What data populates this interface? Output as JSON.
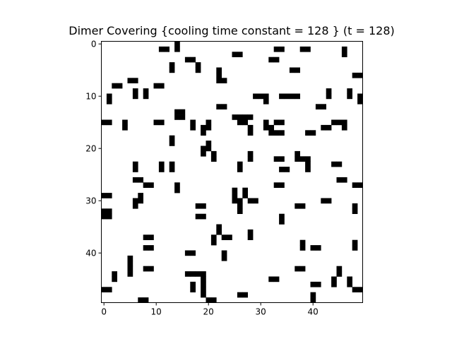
{
  "chart_data": {
    "type": "heatmap",
    "title": "Dimer Covering {cooling time constant = 128 } (t = 128)",
    "xlabel": "",
    "ylabel": "",
    "grid_size": [
      50,
      50
    ],
    "xlim": [
      -0.5,
      49.5
    ],
    "ylim": [
      49.5,
      -0.5
    ],
    "x_ticks": [
      0,
      10,
      20,
      30,
      40
    ],
    "y_ticks": [
      0,
      10,
      20,
      30,
      40
    ],
    "colormap": {
      "0": "#ffffff",
      "1": "#000000"
    },
    "filled_cells": [
      [
        1,
        11
      ],
      [
        1,
        12
      ],
      [
        0,
        14
      ],
      [
        1,
        14
      ],
      [
        3,
        16
      ],
      [
        3,
        17
      ],
      [
        2,
        25
      ],
      [
        2,
        26
      ],
      [
        1,
        33
      ],
      [
        1,
        34
      ],
      [
        1,
        38
      ],
      [
        1,
        39
      ],
      [
        1,
        46
      ],
      [
        2,
        46
      ],
      [
        3,
        32
      ],
      [
        3,
        33
      ],
      [
        4,
        13
      ],
      [
        5,
        13
      ],
      [
        4,
        18
      ],
      [
        5,
        18
      ],
      [
        5,
        36
      ],
      [
        5,
        37
      ],
      [
        5,
        22
      ],
      [
        6,
        22
      ],
      [
        6,
        48
      ],
      [
        6,
        49
      ],
      [
        7,
        5
      ],
      [
        7,
        6
      ],
      [
        7,
        22
      ],
      [
        7,
        23
      ],
      [
        8,
        2
      ],
      [
        8,
        3
      ],
      [
        8,
        10
      ],
      [
        8,
        11
      ],
      [
        9,
        6
      ],
      [
        10,
        6
      ],
      [
        9,
        8
      ],
      [
        10,
        8
      ],
      [
        10,
        1
      ],
      [
        11,
        1
      ],
      [
        10,
        29
      ],
      [
        10,
        30
      ],
      [
        10,
        31
      ],
      [
        11,
        31
      ],
      [
        10,
        34
      ],
      [
        10,
        35
      ],
      [
        10,
        36
      ],
      [
        10,
        37
      ],
      [
        9,
        43
      ],
      [
        10,
        43
      ],
      [
        9,
        47
      ],
      [
        10,
        47
      ],
      [
        10,
        49
      ],
      [
        11,
        49
      ],
      [
        12,
        22
      ],
      [
        12,
        23
      ],
      [
        12,
        41
      ],
      [
        12,
        42
      ],
      [
        13,
        14
      ],
      [
        13,
        15
      ],
      [
        14,
        14
      ],
      [
        14,
        15
      ],
      [
        14,
        25
      ],
      [
        14,
        26
      ],
      [
        14,
        27
      ],
      [
        14,
        28
      ],
      [
        15,
        0
      ],
      [
        15,
        1
      ],
      [
        15,
        4
      ],
      [
        16,
        4
      ],
      [
        15,
        10
      ],
      [
        15,
        11
      ],
      [
        15,
        17
      ],
      [
        16,
        17
      ],
      [
        15,
        20
      ],
      [
        16,
        20
      ],
      [
        15,
        26
      ],
      [
        15,
        27
      ],
      [
        15,
        31
      ],
      [
        16,
        31
      ],
      [
        15,
        33
      ],
      [
        15,
        34
      ],
      [
        15,
        44
      ],
      [
        15,
        45
      ],
      [
        16,
        42
      ],
      [
        16,
        43
      ],
      [
        15,
        46
      ],
      [
        16,
        46
      ],
      [
        16,
        19
      ],
      [
        17,
        19
      ],
      [
        16,
        28
      ],
      [
        17,
        28
      ],
      [
        16,
        32
      ],
      [
        17,
        32
      ],
      [
        17,
        33
      ],
      [
        17,
        34
      ],
      [
        17,
        39
      ],
      [
        17,
        40
      ],
      [
        18,
        13
      ],
      [
        19,
        13
      ],
      [
        19,
        20
      ],
      [
        20,
        20
      ],
      [
        20,
        19
      ],
      [
        21,
        19
      ],
      [
        21,
        21
      ],
      [
        22,
        21
      ],
      [
        21,
        28
      ],
      [
        22,
        28
      ],
      [
        22,
        33
      ],
      [
        22,
        34
      ],
      [
        21,
        37
      ],
      [
        22,
        37
      ],
      [
        22,
        38
      ],
      [
        22,
        39
      ],
      [
        23,
        6
      ],
      [
        24,
        6
      ],
      [
        23,
        11
      ],
      [
        24,
        11
      ],
      [
        23,
        13
      ],
      [
        24,
        13
      ],
      [
        23,
        26
      ],
      [
        24,
        26
      ],
      [
        23,
        39
      ],
      [
        24,
        39
      ],
      [
        23,
        44
      ],
      [
        23,
        45
      ],
      [
        24,
        34
      ],
      [
        24,
        35
      ],
      [
        26,
        6
      ],
      [
        26,
        7
      ],
      [
        26,
        45
      ],
      [
        26,
        46
      ],
      [
        27,
        8
      ],
      [
        27,
        9
      ],
      [
        27,
        14
      ],
      [
        28,
        14
      ],
      [
        27,
        33
      ],
      [
        27,
        34
      ],
      [
        27,
        48
      ],
      [
        27,
        49
      ],
      [
        28,
        25
      ],
      [
        29,
        25
      ],
      [
        28,
        27
      ],
      [
        29,
        27
      ],
      [
        29,
        0
      ],
      [
        29,
        1
      ],
      [
        29,
        7
      ],
      [
        30,
        7
      ],
      [
        30,
        6
      ],
      [
        31,
        6
      ],
      [
        30,
        25
      ],
      [
        30,
        26
      ],
      [
        30,
        28
      ],
      [
        30,
        29
      ],
      [
        30,
        42
      ],
      [
        30,
        43
      ],
      [
        31,
        18
      ],
      [
        31,
        19
      ],
      [
        31,
        37
      ],
      [
        31,
        38
      ],
      [
        31,
        48
      ],
      [
        32,
        48
      ],
      [
        31,
        26
      ],
      [
        32,
        26
      ],
      [
        32,
        0
      ],
      [
        32,
        1
      ],
      [
        33,
        0
      ],
      [
        33,
        1
      ],
      [
        33,
        18
      ],
      [
        33,
        19
      ],
      [
        33,
        34
      ],
      [
        34,
        34
      ],
      [
        35,
        22
      ],
      [
        36,
        22
      ],
      [
        36,
        28
      ],
      [
        37,
        28
      ],
      [
        37,
        8
      ],
      [
        37,
        9
      ],
      [
        37,
        21
      ],
      [
        38,
        21
      ],
      [
        37,
        23
      ],
      [
        37,
        24
      ],
      [
        38,
        38
      ],
      [
        39,
        38
      ],
      [
        38,
        48
      ],
      [
        39,
        48
      ],
      [
        39,
        8
      ],
      [
        39,
        9
      ],
      [
        39,
        40
      ],
      [
        39,
        41
      ],
      [
        40,
        16
      ],
      [
        40,
        17
      ],
      [
        40,
        23
      ],
      [
        41,
        23
      ],
      [
        41,
        5
      ],
      [
        42,
        5
      ],
      [
        43,
        5
      ],
      [
        44,
        5
      ],
      [
        43,
        8
      ],
      [
        43,
        9
      ],
      [
        43,
        37
      ],
      [
        43,
        38
      ],
      [
        43,
        45
      ],
      [
        44,
        45
      ],
      [
        44,
        16
      ],
      [
        44,
        17
      ],
      [
        44,
        18
      ],
      [
        44,
        19
      ],
      [
        44,
        2
      ],
      [
        45,
        2
      ],
      [
        45,
        19
      ],
      [
        46,
        19
      ],
      [
        45,
        32
      ],
      [
        45,
        33
      ],
      [
        45,
        44
      ],
      [
        46,
        44
      ],
      [
        46,
        17
      ],
      [
        47,
        17
      ],
      [
        46,
        40
      ],
      [
        46,
        41
      ],
      [
        45,
        47
      ],
      [
        46,
        47
      ],
      [
        47,
        0
      ],
      [
        47,
        1
      ],
      [
        47,
        19
      ],
      [
        48,
        19
      ],
      [
        47,
        48
      ],
      [
        47,
        49
      ],
      [
        48,
        26
      ],
      [
        48,
        27
      ],
      [
        48,
        40
      ],
      [
        49,
        40
      ],
      [
        49,
        7
      ],
      [
        49,
        8
      ],
      [
        49,
        20
      ],
      [
        49,
        21
      ]
    ]
  }
}
